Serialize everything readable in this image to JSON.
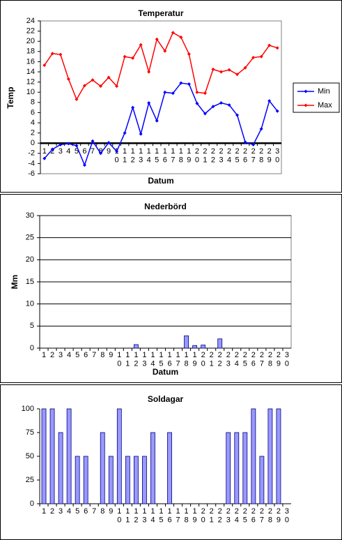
{
  "chart_data": [
    {
      "type": "line",
      "title": "Temperatur",
      "xlabel": "Datum",
      "ylabel": "Temp",
      "categories": [
        "1",
        "2",
        "3",
        "4",
        "5",
        "6",
        "7",
        "8",
        "9",
        "10",
        "11",
        "12",
        "13",
        "14",
        "15",
        "16",
        "17",
        "18",
        "19",
        "20",
        "21",
        "22",
        "23",
        "24",
        "25",
        "26",
        "27",
        "28",
        "29",
        "30"
      ],
      "series": [
        {
          "name": "Min",
          "color": "#0000ff",
          "values": [
            -3.0,
            -1.2,
            -0.3,
            -0.1,
            -0.5,
            -4.3,
            0.4,
            -2.0,
            0.1,
            -1.6,
            2.0,
            7.0,
            1.8,
            7.9,
            4.4,
            10.0,
            9.8,
            11.8,
            11.6,
            7.8,
            5.8,
            7.2,
            7.9,
            7.5,
            5.5,
            0.2,
            -0.3,
            2.8,
            8.3,
            6.3
          ]
        },
        {
          "name": "Max",
          "color": "#ff0000",
          "values": [
            15.3,
            17.6,
            17.4,
            12.6,
            8.6,
            11.3,
            12.4,
            11.2,
            12.9,
            11.2,
            17.0,
            16.7,
            19.3,
            14.0,
            20.4,
            18.1,
            21.7,
            20.8,
            17.5,
            10.0,
            9.8,
            14.5,
            14.0,
            14.4,
            13.5,
            14.8,
            16.8,
            17.0,
            19.2,
            18.7
          ]
        }
      ],
      "ylim": [
        -6,
        24
      ],
      "yticks": [
        -6,
        -4,
        -2,
        0,
        2,
        4,
        6,
        8,
        10,
        12,
        14,
        16,
        18,
        20,
        22,
        24
      ],
      "grid": false,
      "legend": "right"
    },
    {
      "type": "bar",
      "title": "Nederbörd",
      "xlabel": "Datum",
      "ylabel": "Mm",
      "categories": [
        "1",
        "2",
        "3",
        "4",
        "5",
        "6",
        "7",
        "8",
        "9",
        "10",
        "11",
        "12",
        "13",
        "14",
        "15",
        "16",
        "17",
        "18",
        "19",
        "20",
        "21",
        "22",
        "23",
        "24",
        "25",
        "26",
        "27",
        "28",
        "29",
        "30"
      ],
      "values": [
        0,
        0,
        0,
        0,
        0,
        0,
        0,
        0,
        0,
        0,
        0,
        0.8,
        0,
        0,
        0,
        0,
        0,
        2.8,
        0.6,
        0.7,
        0,
        2.1,
        0,
        0,
        0,
        0,
        0,
        0,
        0,
        0
      ],
      "color": "#9999ff",
      "ylim": [
        0,
        30
      ],
      "yticks": [
        0,
        5,
        10,
        15,
        20,
        25,
        30
      ],
      "grid": true
    },
    {
      "type": "bar",
      "title": "Soldagar",
      "categories": [
        "1",
        "2",
        "3",
        "4",
        "5",
        "6",
        "7",
        "8",
        "9",
        "10",
        "11",
        "12",
        "13",
        "14",
        "15",
        "16",
        "17",
        "18",
        "19",
        "20",
        "21",
        "22",
        "23",
        "24",
        "25",
        "26",
        "27",
        "28",
        "29",
        "30"
      ],
      "values": [
        100,
        100,
        75,
        100,
        50,
        50,
        0,
        75,
        50,
        100,
        50,
        50,
        50,
        75,
        0,
        75,
        0,
        0,
        0,
        0,
        0,
        0,
        75,
        75,
        75,
        100,
        50,
        100,
        100,
        0
      ],
      "color": "#9999ff",
      "ylim": [
        0,
        100
      ],
      "yticks": [
        0,
        25,
        50,
        75,
        100
      ],
      "grid": false
    }
  ]
}
